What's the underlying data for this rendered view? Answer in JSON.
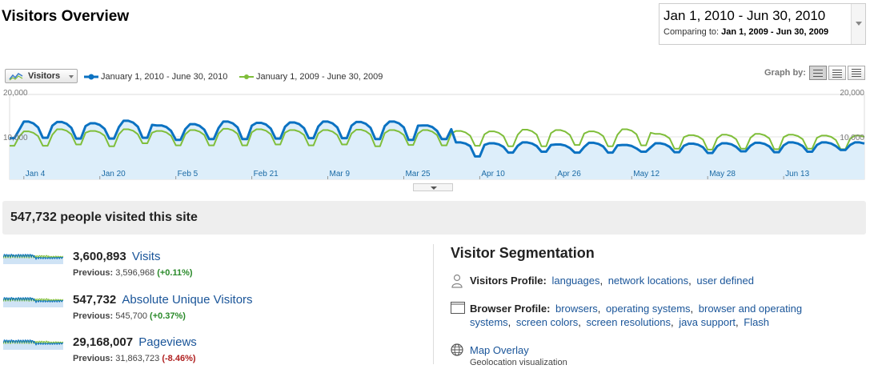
{
  "header": {
    "title": "Visitors Overview",
    "date_range": "Jan 1, 2010 - Jun 30, 2010",
    "comparing_label": "Comparing to:",
    "comparing_range": "Jan 1, 2009 - Jun 30, 2009"
  },
  "chart_controls": {
    "metric_selector": "Visitors",
    "legend": [
      {
        "label": "January 1, 2010 - June 30, 2010",
        "color": "#0b72c2"
      },
      {
        "label": "January 1, 2009 - June 30, 2009",
        "color": "#7fbe3a"
      }
    ],
    "graph_by_label": "Graph by:"
  },
  "chart_data": {
    "type": "line",
    "y_ticks": [
      "20,000",
      "10,000"
    ],
    "ylim": [
      0,
      20000
    ],
    "x_tick_labels": [
      "Jan 4",
      "Jan 20",
      "Feb 5",
      "Feb 21",
      "Mar 9",
      "Mar 25",
      "Apr 10",
      "Apr 26",
      "May 12",
      "May 28",
      "Jun 13"
    ],
    "series": [
      {
        "name": "January 1, 2010 - June 30, 2010",
        "color": "#0b72c2",
        "fill": true,
        "weekly_weekday": [
          12500,
          13600,
          13500,
          13200,
          13800,
          12700,
          13000,
          13600,
          13300,
          13400,
          13600,
          13500,
          13600,
          12700,
          8700,
          8500,
          8700,
          8200,
          8600,
          8100,
          8500,
          8400,
          8500,
          8600,
          8700,
          8700
        ],
        "weekly_weekend": [
          9700,
          9800,
          9600,
          9600,
          9800,
          9300,
          9500,
          9500,
          9600,
          9700,
          9700,
          9500,
          9300,
          9500,
          5400,
          6300,
          6500,
          6300,
          6300,
          6500,
          6400,
          6200,
          6600,
          6400,
          6500,
          6900
        ]
      },
      {
        "name": "January 1, 2009 - June 30, 2009",
        "color": "#7fbe3a",
        "fill": false,
        "weekly_weekday": [
          10800,
          11300,
          11800,
          11400,
          11800,
          11400,
          11600,
          11900,
          11800,
          11600,
          11600,
          11700,
          11600,
          11600,
          11400,
          11300,
          11700,
          11600,
          11300,
          11800,
          10700,
          10400,
          10500,
          10700,
          10500,
          10300
        ],
        "weekly_weekend": [
          7900,
          7900,
          8200,
          7800,
          8500,
          8000,
          8000,
          8000,
          8200,
          8000,
          8200,
          7800,
          8100,
          8000,
          7900,
          7800,
          7800,
          8100,
          7800,
          8000,
          7200,
          7000,
          7200,
          7100,
          7200,
          7100
        ]
      }
    ]
  },
  "summary": {
    "headline": "547,732 people visited this site"
  },
  "metrics": [
    {
      "value": "3,600,893",
      "label": "Visits",
      "prev_label": "Previous:",
      "prev_value": "3,596,968",
      "change": "(+0.11%)",
      "change_dir": "pos"
    },
    {
      "value": "547,732",
      "label": "Absolute Unique Visitors",
      "prev_label": "Previous:",
      "prev_value": "545,700",
      "change": "(+0.37%)",
      "change_dir": "pos"
    },
    {
      "value": "29,168,007",
      "label": "Pageviews",
      "prev_label": "Previous:",
      "prev_value": "31,863,723",
      "change": "(-8.46%)",
      "change_dir": "neg"
    }
  ],
  "segmentation": {
    "title": "Visitor Segmentation",
    "visitors_profile": {
      "label": "Visitors Profile:",
      "links": [
        "languages",
        "network locations",
        "user defined"
      ]
    },
    "browser_profile": {
      "label": "Browser Profile:",
      "links": [
        "browsers",
        "operating systems",
        "browser and operating systems",
        "screen colors",
        "screen resolutions",
        "java support",
        "Flash"
      ]
    },
    "map_overlay": {
      "label": "Map Overlay",
      "sub": "Geolocation visualization"
    }
  }
}
